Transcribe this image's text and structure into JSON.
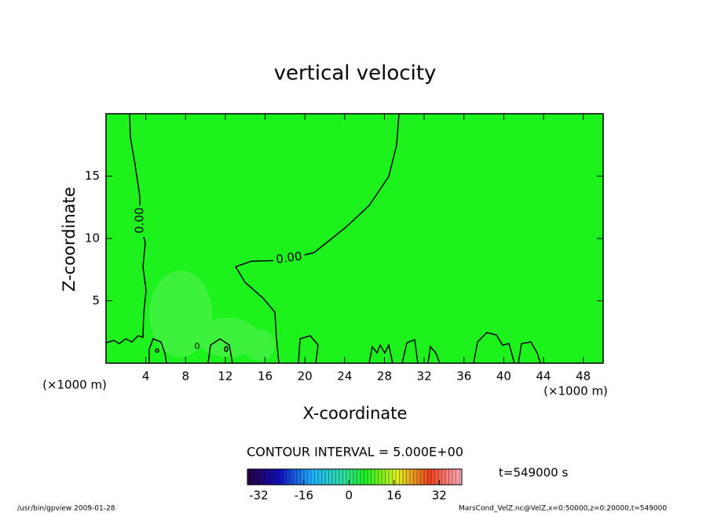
{
  "chart_data": {
    "type": "contour",
    "title": "vertical velocity",
    "x_label": "X-coordinate",
    "y_label": "Z-coordinate",
    "x_unit_left": "(×1000 m)",
    "x_unit_right": "(×1000 m)",
    "xlim": [
      0,
      50
    ],
    "xticks": [
      4,
      8,
      12,
      16,
      20,
      24,
      28,
      32,
      36,
      40,
      44,
      48
    ],
    "ylim": [
      0,
      20
    ],
    "yticks": [
      5,
      10,
      15
    ],
    "fill_color": "#1cf21c",
    "contour_labels": [
      "0.00",
      "0.00",
      "0"
    ],
    "contour_interval": "CONTOUR INTERVAL = 5.000E+00",
    "time": "t=549000 s",
    "colorbar": {
      "lim": [
        -36,
        40
      ],
      "ticks": [
        -32,
        -16,
        0,
        16,
        32
      ]
    },
    "footer_left": "/usr/bin/gpview  2009-01-28",
    "footer_right": "MarsCond_VelZ.nc@VelZ,x=0:50000,z=0:20000,t=549000"
  }
}
